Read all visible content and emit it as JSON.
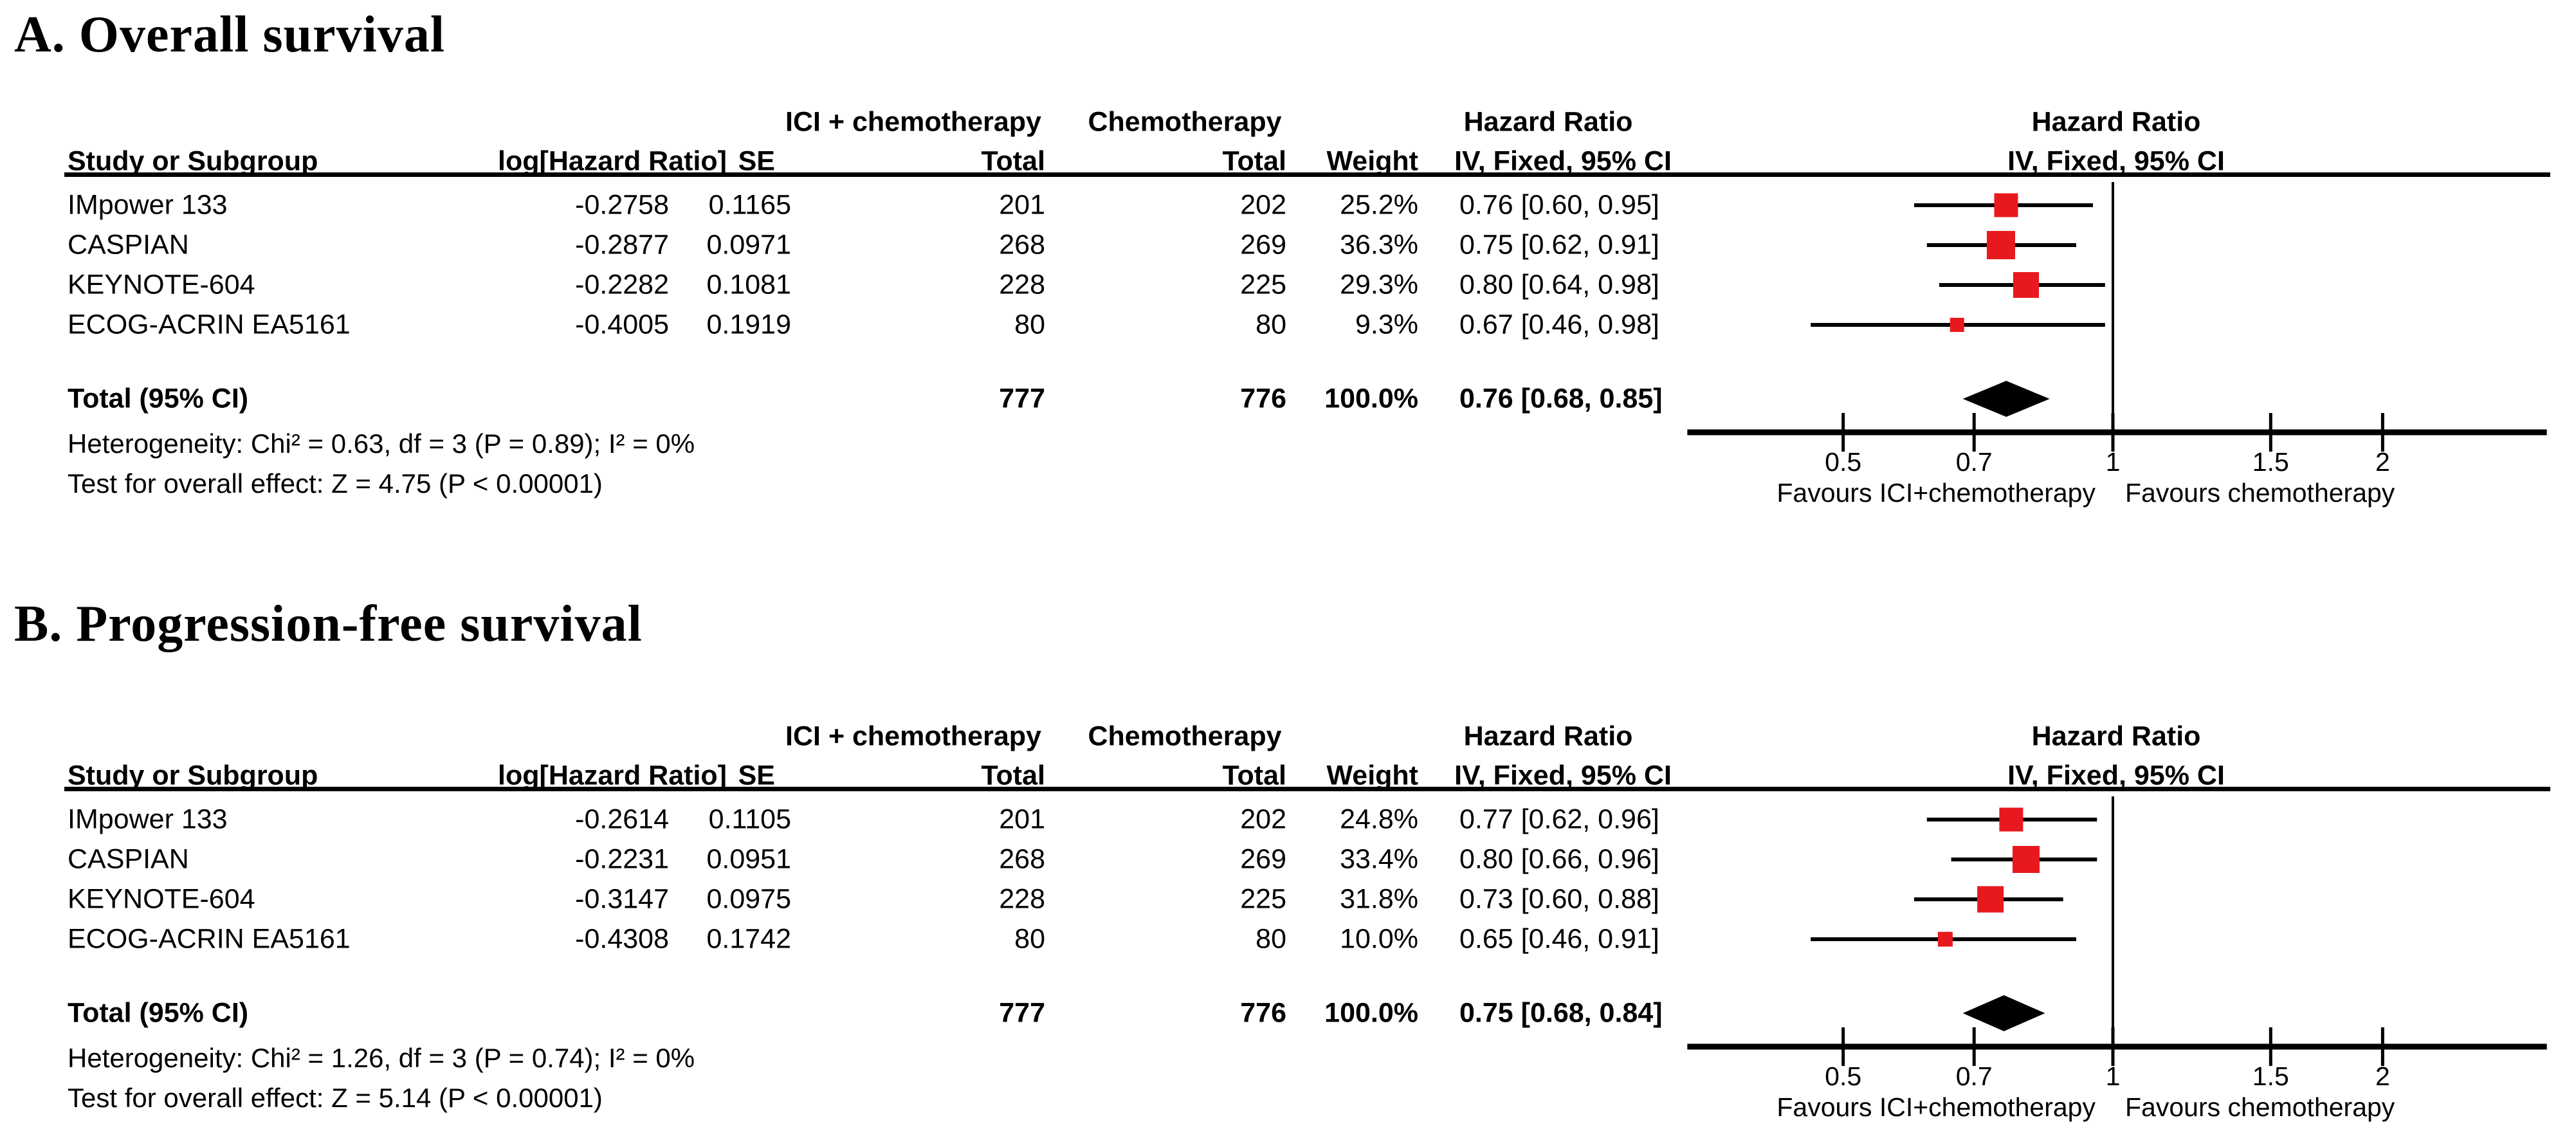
{
  "figure": {
    "kind": "forest-plot-meta-analysis",
    "panel_count": 2
  },
  "colors": {
    "effect_marker": "#e8191e",
    "diamond": "#000000",
    "text": "#000000",
    "line": "#000000"
  },
  "chart_data": [
    {
      "type": "scatter",
      "chart_kind": "forest_plot",
      "panel_label": "A. Overall survival",
      "effect_measure": "Hazard Ratio",
      "method": "IV, Fixed, 95% CI",
      "columns": {
        "group_ici": "ICI + chemotherapy",
        "group_chemo": "Chemotherapy",
        "group_hr": "Hazard Ratio",
        "study": "Study or Subgroup",
        "log_hr": "log[Hazard Ratio]",
        "se": "SE",
        "total_ici": "Total",
        "total_chemo": "Total",
        "weight": "Weight",
        "iv_fixed": "IV, Fixed, 95% CI"
      },
      "studies": [
        {
          "name": "IMpower 133",
          "log_hr": "-0.2758",
          "se": "0.1165",
          "ici_total": "201",
          "chemo_total": "202",
          "weight": "25.2%",
          "hr_ci": "0.76 [0.60, 0.95]",
          "hr": 0.76,
          "ci_low": 0.6,
          "ci_high": 0.95,
          "weight_pct": 25.2
        },
        {
          "name": "CASPIAN",
          "log_hr": "-0.2877",
          "se": "0.0971",
          "ici_total": "268",
          "chemo_total": "269",
          "weight": "36.3%",
          "hr_ci": "0.75 [0.62, 0.91]",
          "hr": 0.75,
          "ci_low": 0.62,
          "ci_high": 0.91,
          "weight_pct": 36.3
        },
        {
          "name": "KEYNOTE-604",
          "log_hr": "-0.2282",
          "se": "0.1081",
          "ici_total": "228",
          "chemo_total": "225",
          "weight": "29.3%",
          "hr_ci": "0.80 [0.64, 0.98]",
          "hr": 0.8,
          "ci_low": 0.64,
          "ci_high": 0.98,
          "weight_pct": 29.3
        },
        {
          "name": "ECOG-ACRIN EA5161",
          "log_hr": "-0.4005",
          "se": "0.1919",
          "ici_total": "80",
          "chemo_total": "80",
          "weight": "9.3%",
          "hr_ci": "0.67 [0.46, 0.98]",
          "hr": 0.67,
          "ci_low": 0.46,
          "ci_high": 0.98,
          "weight_pct": 9.3
        }
      ],
      "total": {
        "label": "Total (95% CI)",
        "ici_total": "777",
        "chemo_total": "776",
        "weight": "100.0%",
        "hr_ci": "0.76 [0.68, 0.85]",
        "hr": 0.76,
        "ci_low": 0.68,
        "ci_high": 0.85
      },
      "heterogeneity": "Heterogeneity: Chi² = 0.63, df = 3 (P = 0.89); I² = 0%",
      "overall_effect": "Test for overall effect: Z = 4.75 (P < 0.00001)",
      "x_axis": {
        "scale": "log",
        "ref_line": 1,
        "range_approx": [
          0.335,
          3.05
        ],
        "ticks": [
          {
            "label": "0.5",
            "value": 0.5
          },
          {
            "label": "0.7",
            "value": 0.7
          },
          {
            "label": "1",
            "value": 1
          },
          {
            "label": "1.5",
            "value": 1.5
          },
          {
            "label": "2",
            "value": 2
          }
        ]
      },
      "favours": {
        "left": "Favours ICI+chemotherapy",
        "right": "Favours chemotherapy"
      }
    },
    {
      "type": "scatter",
      "chart_kind": "forest_plot",
      "panel_label": "B. Progression-free survival",
      "effect_measure": "Hazard Ratio",
      "method": "IV, Fixed, 95% CI",
      "columns": {
        "group_ici": "ICI + chemotherapy",
        "group_chemo": "Chemotherapy",
        "group_hr": "Hazard Ratio",
        "study": "Study or Subgroup",
        "log_hr": "log[Hazard Ratio]",
        "se": "SE",
        "total_ici": "Total",
        "total_chemo": "Total",
        "weight": "Weight",
        "iv_fixed": "IV, Fixed, 95% CI"
      },
      "studies": [
        {
          "name": "IMpower 133",
          "log_hr": "-0.2614",
          "se": "0.1105",
          "ici_total": "201",
          "chemo_total": "202",
          "weight": "24.8%",
          "hr_ci": "0.77 [0.62, 0.96]",
          "hr": 0.77,
          "ci_low": 0.62,
          "ci_high": 0.96,
          "weight_pct": 24.8
        },
        {
          "name": "CASPIAN",
          "log_hr": "-0.2231",
          "se": "0.0951",
          "ici_total": "268",
          "chemo_total": "269",
          "weight": "33.4%",
          "hr_ci": "0.80 [0.66, 0.96]",
          "hr": 0.8,
          "ci_low": 0.66,
          "ci_high": 0.96,
          "weight_pct": 33.4
        },
        {
          "name": "KEYNOTE-604",
          "log_hr": "-0.3147",
          "se": "0.0975",
          "ici_total": "228",
          "chemo_total": "225",
          "weight": "31.8%",
          "hr_ci": "0.73 [0.60, 0.88]",
          "hr": 0.73,
          "ci_low": 0.6,
          "ci_high": 0.88,
          "weight_pct": 31.8
        },
        {
          "name": "ECOG-ACRIN EA5161",
          "log_hr": "-0.4308",
          "se": "0.1742",
          "ici_total": "80",
          "chemo_total": "80",
          "weight": "10.0%",
          "hr_ci": "0.65 [0.46, 0.91]",
          "hr": 0.65,
          "ci_low": 0.46,
          "ci_high": 0.91,
          "weight_pct": 10.0
        }
      ],
      "total": {
        "label": "Total (95% CI)",
        "ici_total": "777",
        "chemo_total": "776",
        "weight": "100.0%",
        "hr_ci": "0.75 [0.68, 0.84]",
        "hr": 0.75,
        "ci_low": 0.68,
        "ci_high": 0.84
      },
      "heterogeneity": "Heterogeneity: Chi² = 1.26, df = 3 (P = 0.74); I² = 0%",
      "overall_effect": "Test for overall effect: Z = 5.14 (P < 0.00001)",
      "x_axis": {
        "scale": "log",
        "ref_line": 1,
        "range_approx": [
          0.335,
          3.05
        ],
        "ticks": [
          {
            "label": "0.5",
            "value": 0.5
          },
          {
            "label": "0.7",
            "value": 0.7
          },
          {
            "label": "1",
            "value": 1
          },
          {
            "label": "1.5",
            "value": 1.5
          },
          {
            "label": "2",
            "value": 2
          }
        ]
      },
      "favours": {
        "left": "Favours ICI+chemotherapy",
        "right": "Favours chemotherapy"
      }
    }
  ]
}
